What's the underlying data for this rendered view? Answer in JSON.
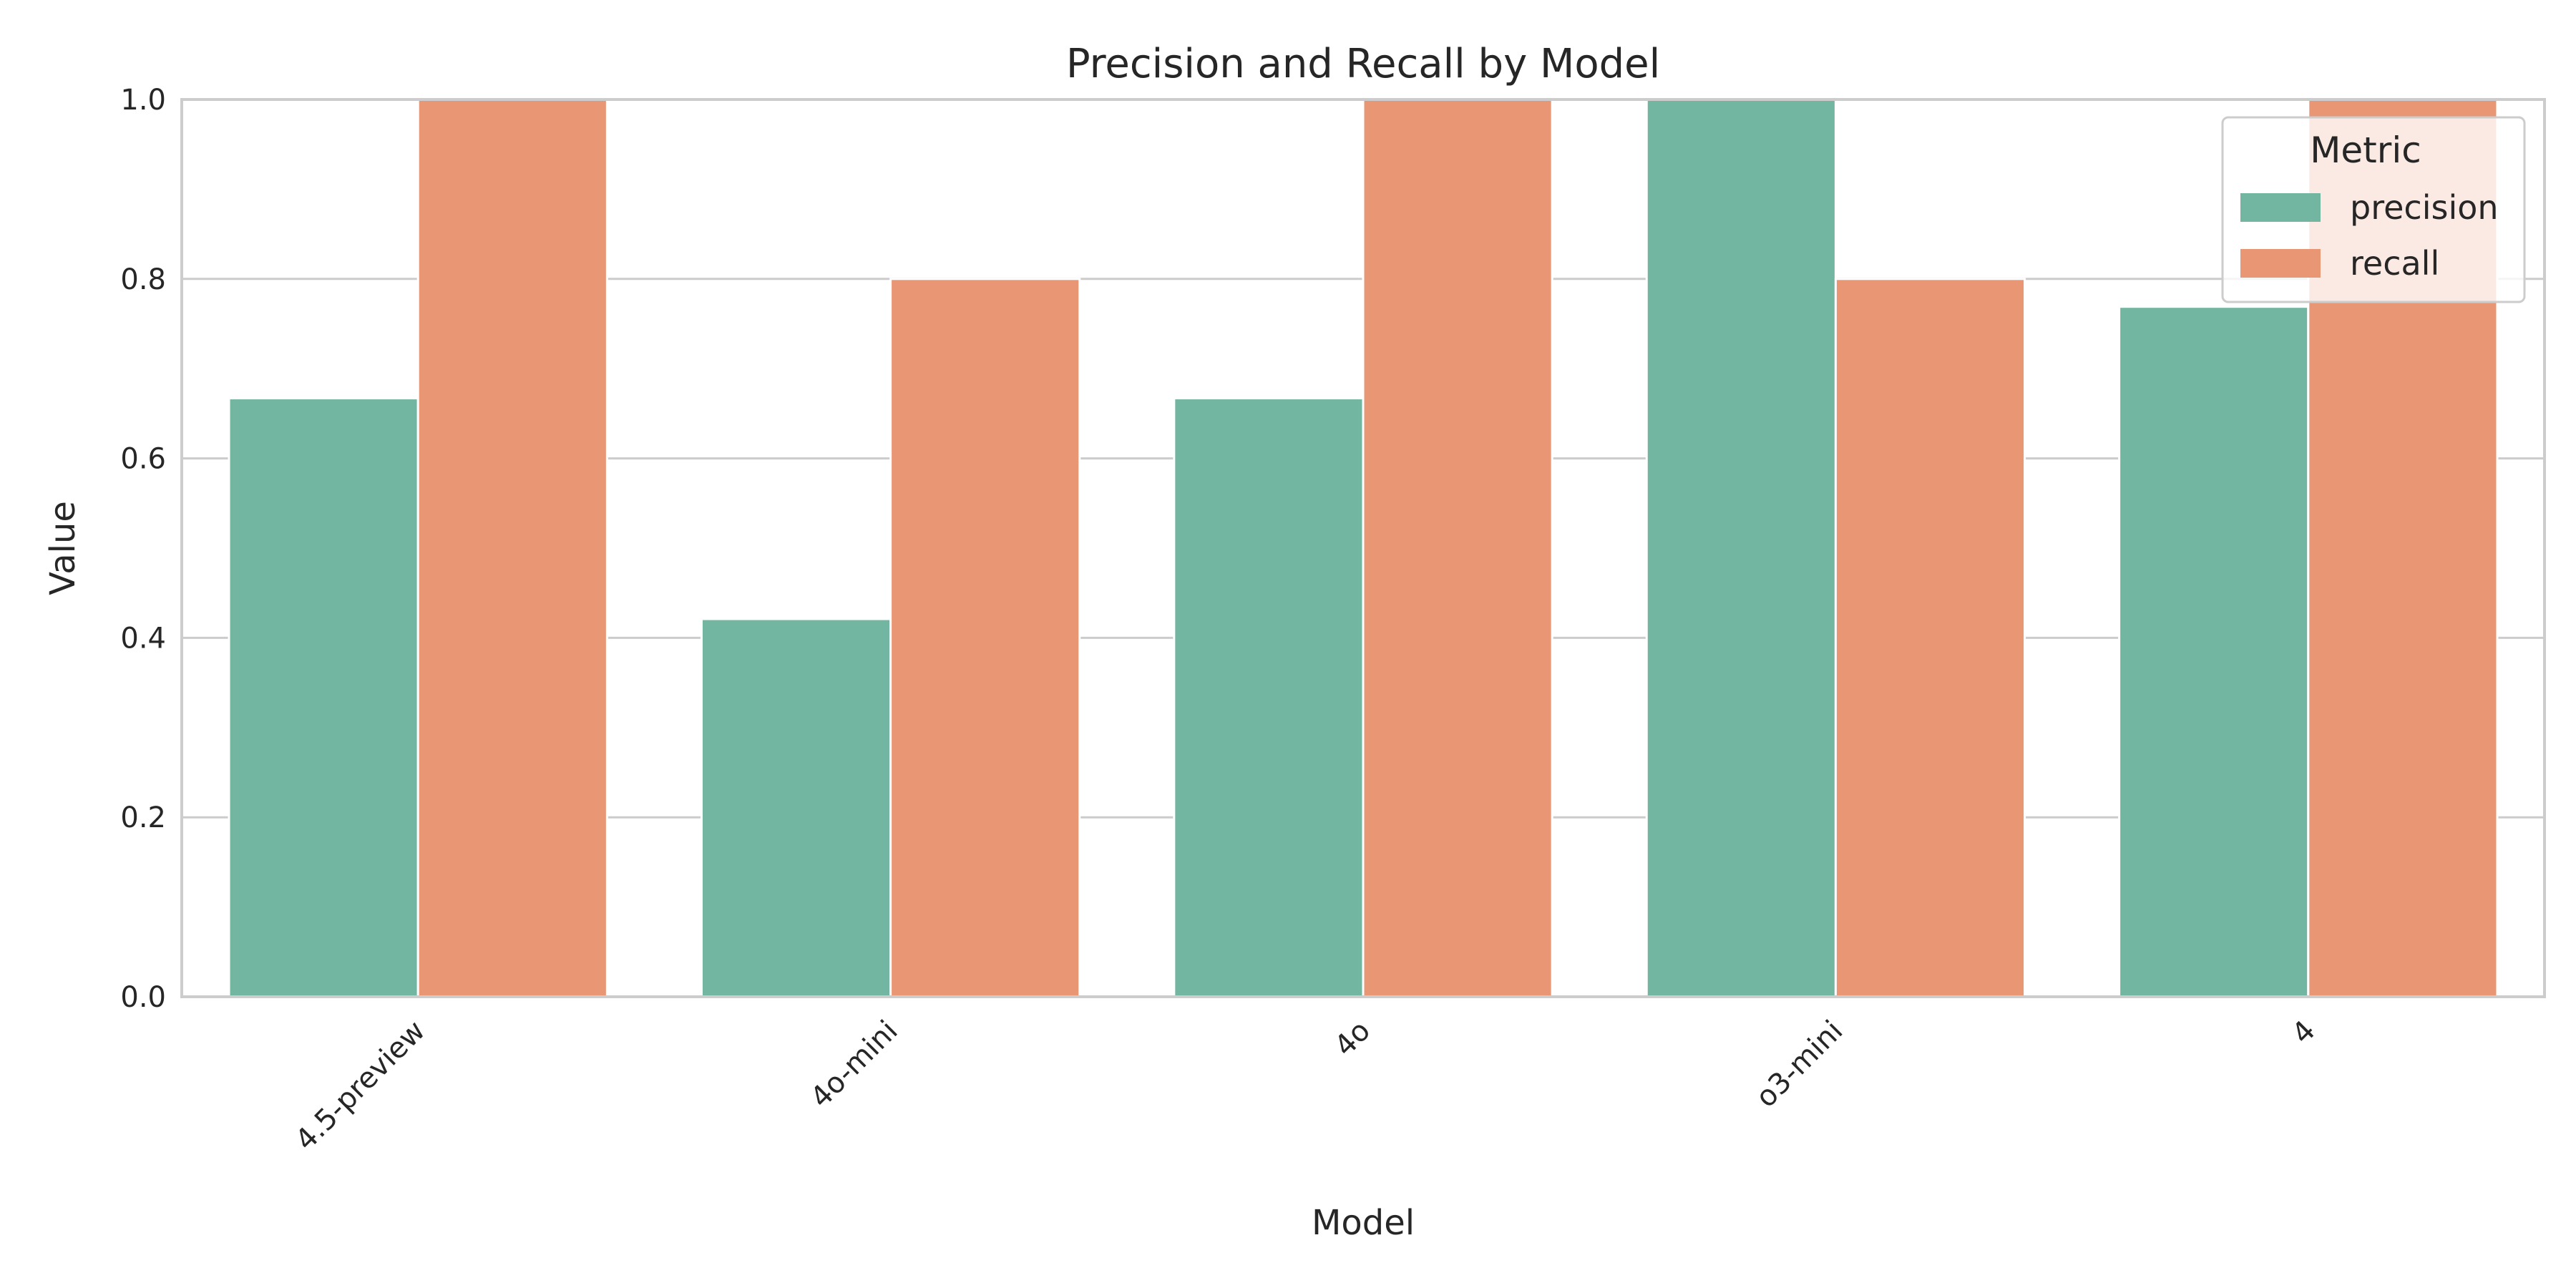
{
  "chart_data": {
    "type": "bar",
    "title": "Precision and Recall by Model",
    "xlabel": "Model",
    "ylabel": "Value",
    "categories": [
      "4.5-preview",
      "4o-mini",
      "4o",
      "o3-mini",
      "4"
    ],
    "series": [
      {
        "name": "precision",
        "values": [
          0.667,
          0.421,
          0.667,
          1.0,
          0.769
        ],
        "color": "#72b6a1"
      },
      {
        "name": "recall",
        "values": [
          1.0,
          0.8,
          1.0,
          0.8,
          1.0
        ],
        "color": "#e99675"
      }
    ],
    "ylim": [
      0,
      1.0
    ],
    "yticks": [
      "0.0",
      "0.2",
      "0.4",
      "0.6",
      "0.8",
      "1.0"
    ],
    "grid": "horizontal",
    "legend": {
      "title": "Metric",
      "placement": "top-right"
    }
  }
}
